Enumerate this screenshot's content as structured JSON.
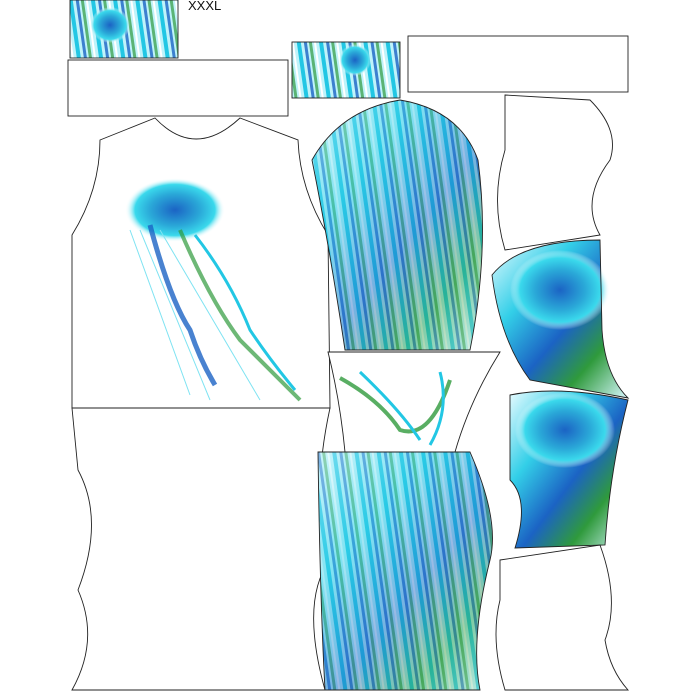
{
  "size_label": "XXXL",
  "colors": {
    "cyan": "#1fd3ea",
    "blue": "#1b63c4",
    "green": "#2f9a3c",
    "outline": "#222222"
  }
}
